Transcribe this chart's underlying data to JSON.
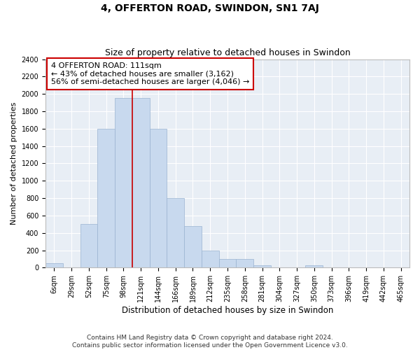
{
  "title": "4, OFFERTON ROAD, SWINDON, SN1 7AJ",
  "subtitle": "Size of property relative to detached houses in Swindon",
  "xlabel": "Distribution of detached houses by size in Swindon",
  "ylabel": "Number of detached properties",
  "categories": [
    "6sqm",
    "29sqm",
    "52sqm",
    "75sqm",
    "98sqm",
    "121sqm",
    "144sqm",
    "166sqm",
    "189sqm",
    "212sqm",
    "235sqm",
    "258sqm",
    "281sqm",
    "304sqm",
    "327sqm",
    "350sqm",
    "373sqm",
    "396sqm",
    "419sqm",
    "442sqm",
    "465sqm"
  ],
  "values": [
    50,
    0,
    500,
    1600,
    1950,
    1950,
    1600,
    800,
    480,
    200,
    100,
    100,
    30,
    0,
    0,
    25,
    0,
    0,
    0,
    0,
    0
  ],
  "bar_color": "#c8d9ee",
  "bar_edge_color": "#9ab3d0",
  "property_label": "4 OFFERTON ROAD: 111sqm",
  "annotation_line1": "← 43% of detached houses are smaller (3,162)",
  "annotation_line2": "56% of semi-detached houses are larger (4,046) →",
  "vline_color": "#cc0000",
  "vline_x_index": 4.5,
  "annotation_box_facecolor": "#ffffff",
  "annotation_border_color": "#cc0000",
  "ylim": [
    0,
    2400
  ],
  "yticks": [
    0,
    200,
    400,
    600,
    800,
    1000,
    1200,
    1400,
    1600,
    1800,
    2000,
    2200,
    2400
  ],
  "footer_line1": "Contains HM Land Registry data © Crown copyright and database right 2024.",
  "footer_line2": "Contains public sector information licensed under the Open Government Licence v3.0.",
  "fig_bg_color": "#ffffff",
  "plot_bg_color": "#e8eef5",
  "grid_color": "#ffffff",
  "title_fontsize": 10,
  "subtitle_fontsize": 9,
  "xlabel_fontsize": 8.5,
  "ylabel_fontsize": 8,
  "tick_fontsize": 7,
  "footer_fontsize": 6.5,
  "annotation_fontsize": 8
}
